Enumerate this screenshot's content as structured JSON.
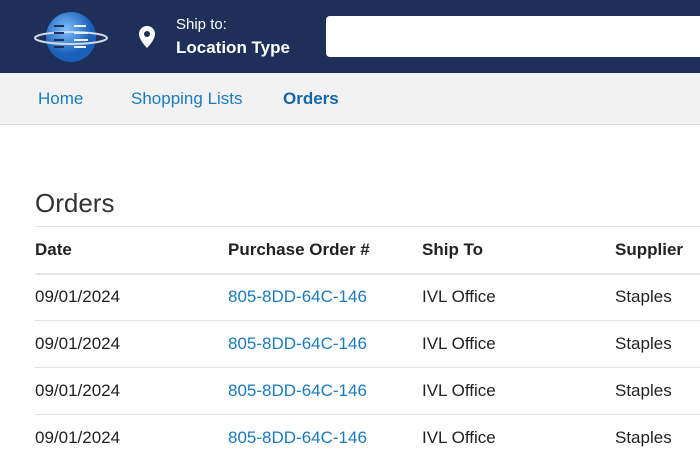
{
  "header": {
    "ship_to_label": "Ship to:",
    "location": "Location Type",
    "search_placeholder": ""
  },
  "nav": {
    "items": [
      "Home",
      "Shopping Lists",
      "Orders"
    ],
    "active": "Orders"
  },
  "page_title": "Orders",
  "table": {
    "columns": [
      "Date",
      "Purchase Order #",
      "Ship To",
      "Supplier"
    ],
    "rows": [
      [
        "09/01/2024",
        "805-8DD-64C-146",
        "IVL Office",
        "Staples"
      ],
      [
        "09/01/2024",
        "805-8DD-64C-146",
        "IVL Office",
        "Staples"
      ],
      [
        "09/01/2024",
        "805-8DD-64C-146",
        "IVL Office",
        "Staples"
      ],
      [
        "09/01/2024",
        "805-8DD-64C-146",
        "IVL Office",
        "Staples"
      ]
    ]
  }
}
